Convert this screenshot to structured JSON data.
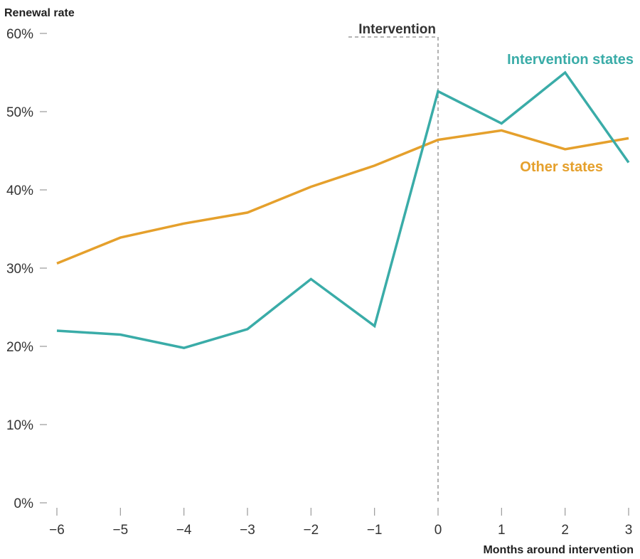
{
  "chart_data": {
    "type": "line",
    "title": "",
    "ylabel": "Renewal rate",
    "xlabel": "Months around intervention",
    "x": [
      -6,
      -5,
      -4,
      -3,
      -2,
      -1,
      0,
      1,
      2,
      3
    ],
    "x_tick_labels": [
      "−6",
      "−5",
      "−4",
      "−3",
      "−2",
      "−1",
      "0",
      "1",
      "2",
      "3"
    ],
    "y_ticks": [
      0,
      10,
      20,
      30,
      40,
      50,
      60
    ],
    "y_tick_labels": [
      "0%",
      "10%",
      "20%",
      "30%",
      "40%",
      "50%",
      "60%"
    ],
    "ylim": [
      0,
      60
    ],
    "xlim": [
      -6,
      3
    ],
    "grid": false,
    "series": [
      {
        "name": "Intervention states",
        "color": "#3aaca8",
        "values": [
          22.0,
          21.5,
          19.8,
          22.2,
          28.6,
          22.6,
          52.6,
          48.5,
          55.0,
          43.5
        ]
      },
      {
        "name": "Other states",
        "color": "#e5a02c",
        "values": [
          30.6,
          33.9,
          35.7,
          37.1,
          40.4,
          43.1,
          46.4,
          47.6,
          45.2,
          46.6
        ]
      }
    ],
    "annotations": [
      {
        "text": "Intervention",
        "x": 0
      }
    ]
  }
}
